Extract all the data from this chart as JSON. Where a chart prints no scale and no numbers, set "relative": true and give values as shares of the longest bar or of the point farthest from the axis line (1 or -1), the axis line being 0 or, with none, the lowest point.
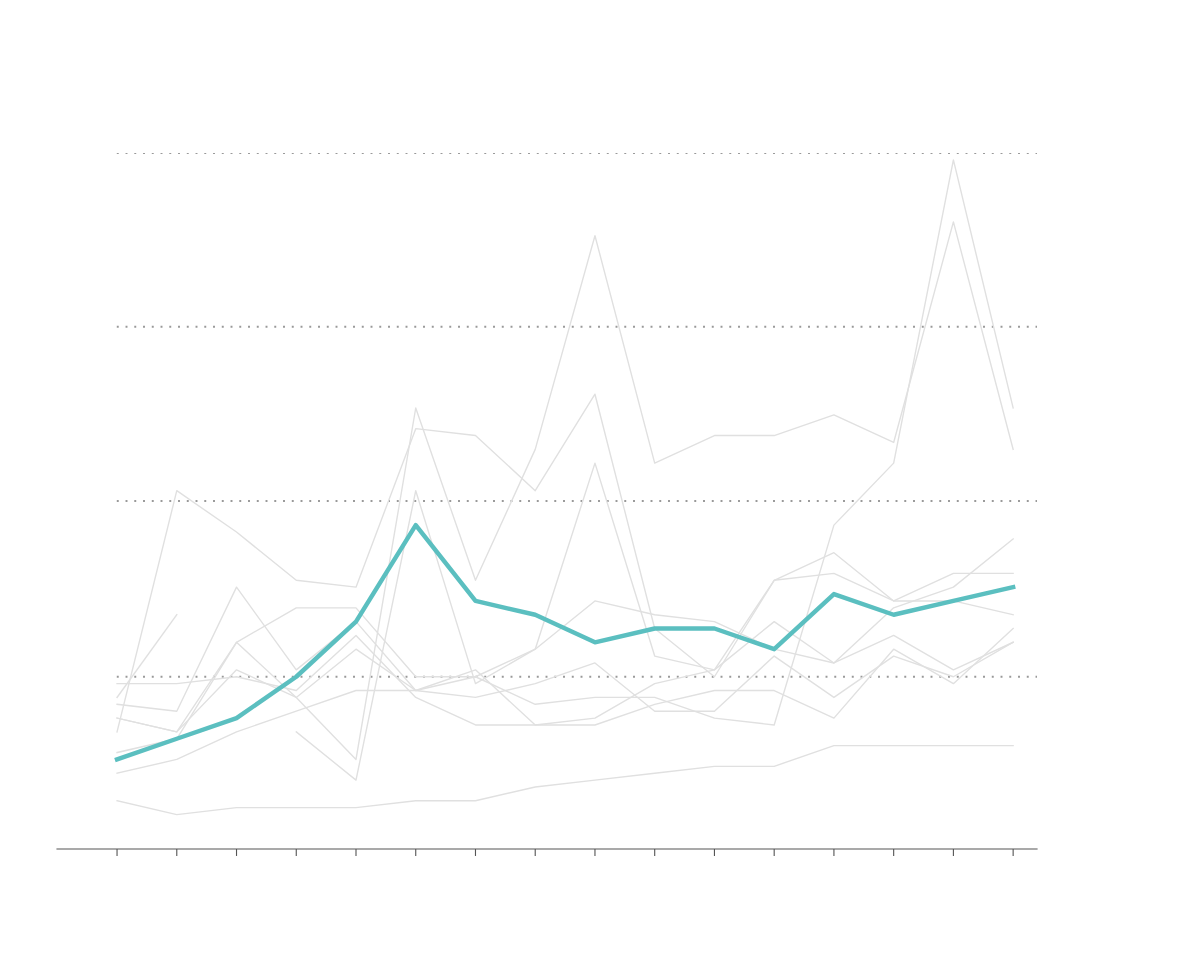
{
  "chart_data": {
    "type": "line",
    "relative": true,
    "grid": false,
    "legend": false,
    "marker": "none",
    "categories": [
      null,
      null,
      null,
      null,
      null,
      null,
      null,
      null,
      null,
      null,
      null,
      null,
      null,
      null,
      null,
      null
    ],
    "ref_lines": [
      {
        "axis": "y",
        "value": 0.25,
        "color": "#999999",
        "line_style": "dotted"
      },
      {
        "axis": "y",
        "value": 0.505,
        "color": "#999999",
        "line_style": "dotted"
      },
      {
        "axis": "y",
        "value": 0.758,
        "color": "#999999",
        "line_style": "dotted"
      },
      {
        "axis": "y",
        "value": 1.01,
        "color": "#999999",
        "line_style": "dotted"
      }
    ],
    "series": [
      {
        "color": "#e0e0e0",
        "values": [
          0.17,
          0.52,
          0.46,
          0.39,
          0.38,
          0.61,
          0.6,
          0.52,
          0.66,
          0.32,
          0.25,
          0.39,
          0.43,
          0.36,
          0.4,
          0.4
        ]
      },
      {
        "color": "#e0e0e0",
        "values": [
          0.19,
          0.17,
          0.3,
          0.22,
          0.13,
          0.64,
          0.39,
          0.58,
          0.89,
          0.56,
          0.6,
          0.6,
          0.63,
          0.59,
          0.91,
          0.58
        ]
      },
      {
        "color": "#e0e0e0",
        "values": [
          null,
          null,
          null,
          0.17,
          0.1,
          0.52,
          0.24,
          0.29,
          0.56,
          0.28,
          0.26,
          0.39,
          0.4,
          0.36,
          0.36,
          0.34
        ]
      },
      {
        "color": "#e0e0e0",
        "values": [
          0.21,
          0.2,
          0.38,
          0.26,
          0.33,
          0.23,
          0.25,
          0.21,
          0.22,
          0.22,
          0.19,
          0.18,
          0.47,
          0.56,
          1.0,
          0.64
        ]
      },
      {
        "color": "#e0e0e0",
        "values": [
          0.24,
          0.24,
          0.25,
          0.23,
          0.31,
          0.22,
          0.18,
          0.18,
          0.18,
          0.21,
          0.23,
          0.23,
          0.19,
          0.29,
          0.24,
          0.32
        ]
      },
      {
        "color": "#e0e0e0",
        "values": [
          0.07,
          0.05,
          0.06,
          0.06,
          0.06,
          0.07,
          0.07,
          0.09,
          0.1,
          0.11,
          0.12,
          0.12,
          0.15,
          0.15,
          0.15,
          0.15
        ]
      },
      {
        "color": "#e0e0e0",
        "values": [
          0.14,
          0.16,
          0.3,
          0.35,
          0.35,
          0.25,
          0.25,
          0.29,
          0.36,
          0.34,
          0.33,
          0.29,
          0.27,
          0.31,
          0.26,
          0.3
        ]
      },
      {
        "color": "#e0e0e0",
        "values": [
          0.11,
          0.13,
          0.17,
          0.2,
          0.23,
          0.23,
          0.22,
          0.24,
          0.27,
          0.2,
          0.2,
          0.28,
          0.22,
          0.28,
          0.25,
          0.3
        ]
      },
      {
        "color": "#e0e0e0",
        "values": [
          0.22,
          0.34,
          null,
          null,
          null,
          null,
          null,
          null,
          null,
          null,
          null,
          null,
          null,
          null,
          null,
          null
        ]
      },
      {
        "color": "#e0e0e0",
        "values": [
          0.19,
          0.17,
          0.26,
          0.22,
          0.29,
          0.23,
          0.26,
          0.18,
          0.19,
          0.24,
          0.26,
          0.33,
          0.27,
          0.35,
          0.38,
          0.45
        ]
      },
      {
        "color": "#5bbfc0",
        "values": [
          0.13,
          0.16,
          0.19,
          0.25,
          0.33,
          0.47,
          0.36,
          0.34,
          0.3,
          0.32,
          0.32,
          0.29,
          0.37,
          0.34,
          0.36,
          0.38
        ]
      }
    ]
  }
}
